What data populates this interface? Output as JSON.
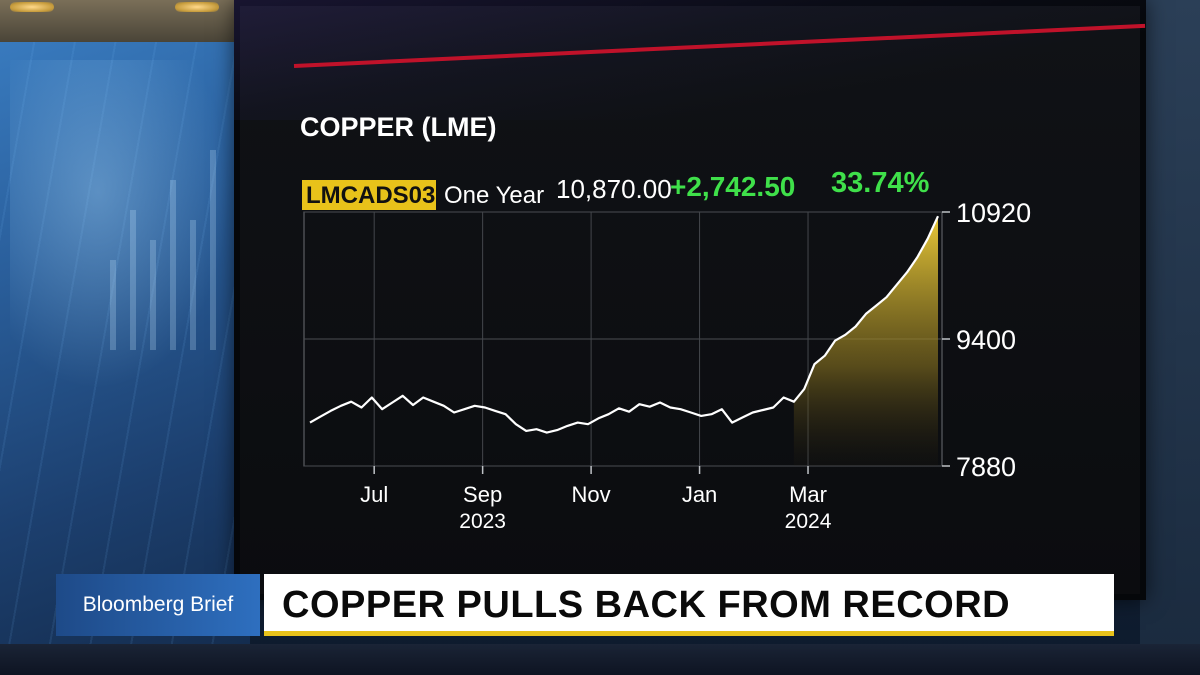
{
  "show": {
    "name": "Bloomberg Brief"
  },
  "headline": "COPPER PULLS BACK FROM RECORD",
  "chart_data": {
    "type": "area",
    "title": "COPPER (LME)",
    "ticker": "LMCADS03",
    "period": "One Year",
    "last_value": "10,870.00",
    "change": "+2,742.50",
    "change_pct": "33.74%",
    "ylim": [
      7880,
      10920
    ],
    "y_ticks": [
      {
        "label": "10920",
        "value": 10920
      },
      {
        "label": "9400",
        "value": 9400
      },
      {
        "label": "7880",
        "value": 7880
      }
    ],
    "x_ticks": [
      {
        "label": "Jul",
        "sub": "",
        "t": 0.11
      },
      {
        "label": "Sep",
        "sub": "2023",
        "t": 0.28
      },
      {
        "label": "Nov",
        "sub": "",
        "t": 0.45
      },
      {
        "label": "Jan",
        "sub": "",
        "t": 0.62
      },
      {
        "label": "Mar",
        "sub": "2024",
        "t": 0.79
      }
    ],
    "grid": true,
    "series": [
      {
        "highlight_start_index": 47,
        "values": [
          8400,
          8470,
          8540,
          8600,
          8650,
          8580,
          8700,
          8560,
          8640,
          8720,
          8610,
          8700,
          8650,
          8600,
          8520,
          8560,
          8600,
          8580,
          8540,
          8500,
          8380,
          8300,
          8320,
          8280,
          8310,
          8360,
          8400,
          8380,
          8450,
          8500,
          8570,
          8530,
          8620,
          8590,
          8640,
          8580,
          8560,
          8520,
          8480,
          8500,
          8560,
          8400,
          8460,
          8520,
          8550,
          8580,
          8700,
          8650,
          8800,
          9100,
          9200,
          9380,
          9450,
          9550,
          9700,
          9800,
          9900,
          10050,
          10200,
          10380,
          10600,
          10870
        ]
      }
    ]
  }
}
